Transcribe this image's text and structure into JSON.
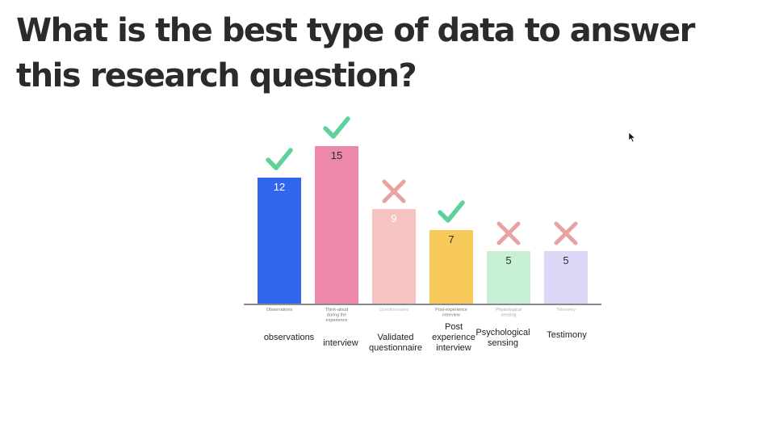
{
  "slide": {
    "title": "What is the best type of data to answer this research question?"
  },
  "chart_data": {
    "type": "bar",
    "title": "",
    "xlabel": "",
    "ylabel": "",
    "ylim": [
      0,
      15
    ],
    "grid": false,
    "legend": "none",
    "categories": [
      "Observations",
      "Think-aloud during the experience",
      "Questionnaires",
      "Post-experience interview",
      "Physiological sensing",
      "Telemetry"
    ],
    "values": [
      12,
      15,
      9,
      7,
      5,
      5
    ],
    "marks": [
      "check",
      "check",
      "cross",
      "check",
      "cross",
      "cross"
    ],
    "bar_colors": [
      "#3366ee",
      "#ee88aa",
      "#f5c4c0",
      "#f7c85a",
      "#c6efd4",
      "#dcd8f8"
    ],
    "value_label_colors": [
      "#ffffff",
      "#2b2b2b",
      "#ffffff",
      "#2b2b2b",
      "#2b2b2b",
      "#2b2b2b"
    ],
    "tick_label_colors": [
      "#777777",
      "#777777",
      "#bbbbbb",
      "#777777",
      "#aaaaaa",
      "#bbbbbb"
    ],
    "check_color": "#5fd19a",
    "cross_color": "#e8a2a2",
    "annotations": [
      "observations",
      "interview",
      "Validated questionnaire",
      "Post experience interview",
      "Psychological sensing",
      "Testimony"
    ]
  }
}
